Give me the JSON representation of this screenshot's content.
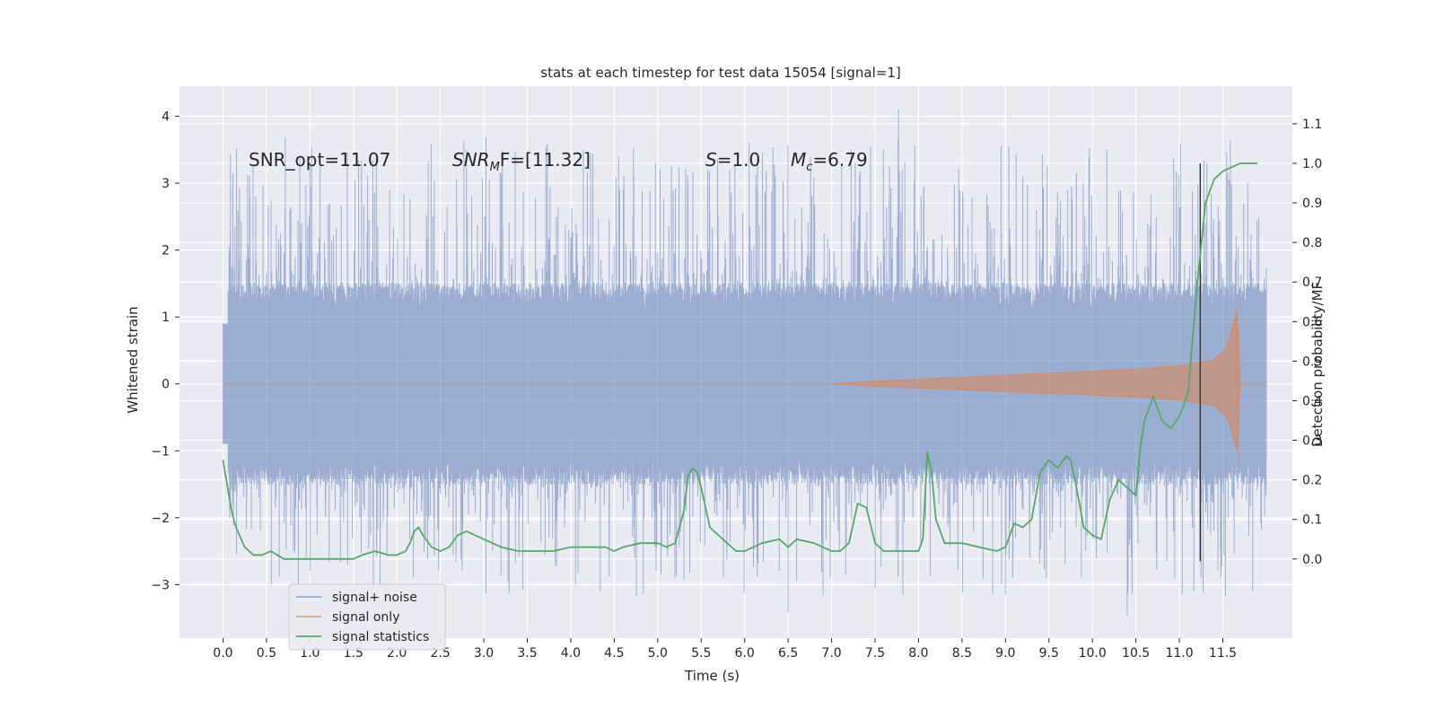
{
  "chart_data": {
    "type": "line",
    "title": "stats at each timestep for test data 15054 [signal=1]",
    "xlabel": "Time (s)",
    "ylabel_left": "Whitened strain",
    "ylabel_right": "Detection probability/MF",
    "xlim": [
      -0.5,
      12.3
    ],
    "ylim_left": [
      -3.8,
      4.45
    ],
    "ylim_right": [
      -0.2,
      1.195
    ],
    "x_ticks": [
      "0.0",
      "0.5",
      "1.0",
      "1.5",
      "2.0",
      "2.5",
      "3.0",
      "3.5",
      "4.0",
      "4.5",
      "5.0",
      "5.5",
      "6.0",
      "6.5",
      "7.0",
      "7.5",
      "8.0",
      "8.5",
      "9.0",
      "9.5",
      "10.0",
      "10.5",
      "11.0",
      "11.5"
    ],
    "y_ticks_left": [
      "4",
      "3",
      "2",
      "1",
      "0",
      "−1",
      "−2",
      "−3"
    ],
    "y_ticks_right": [
      "1.1",
      "1.0",
      "0.9",
      "0.8",
      "0.7",
      "0.6",
      "0.5",
      "0.4",
      "0.3",
      "0.2",
      "0.1",
      "0.0"
    ],
    "grid": true,
    "annotations": {
      "snr_opt": "SNR_opt=11.07",
      "snr_mf_sym": "SNR",
      "snr_mf_sub": "M",
      "snr_mf_rest": "F=[11.32]",
      "s_sym": "S",
      "s_val": "=1.0",
      "mc_sym": "M",
      "mc_sub": "c",
      "mc_val": "=6.79"
    },
    "vertical_marker_x": 11.24,
    "legend": {
      "position": "lower-left",
      "entries": [
        "signal+ noise",
        "signal only",
        "signal statistics"
      ]
    },
    "series": [
      {
        "name": "signal+ noise",
        "color": "#4c72b0",
        "x_range": [
          0.0,
          12.0
        ],
        "core_band": [
          -1.5,
          1.5
        ],
        "peak_range": [
          -3.5,
          4.1
        ],
        "description_values": {
          "max": 4.1,
          "min": -3.45
        }
      },
      {
        "name": "signal only",
        "color": "#dd8452",
        "x_range": [
          0.0,
          12.0
        ],
        "envelope": {
          "x": [
            0.0,
            7.0,
            7.5,
            8.0,
            8.5,
            9.0,
            9.5,
            10.0,
            10.5,
            11.0,
            11.4,
            11.55,
            11.62,
            11.67,
            11.7,
            12.0
          ],
          "amp": [
            0.0,
            0.0,
            0.04,
            0.07,
            0.1,
            0.13,
            0.16,
            0.19,
            0.22,
            0.27,
            0.36,
            0.55,
            0.9,
            1.15,
            0.0,
            0.0
          ]
        }
      },
      {
        "name": "signal statistics",
        "color": "#55a868",
        "x": [
          0.0,
          0.1,
          0.15,
          0.25,
          0.35,
          0.45,
          0.55,
          0.7,
          0.9,
          1.1,
          1.3,
          1.5,
          1.6,
          1.75,
          1.9,
          2.0,
          2.1,
          2.15,
          2.2,
          2.25,
          2.3,
          2.4,
          2.5,
          2.6,
          2.7,
          2.8,
          3.0,
          3.2,
          3.4,
          3.6,
          3.8,
          4.0,
          4.2,
          4.4,
          4.5,
          4.6,
          4.8,
          5.0,
          5.1,
          5.2,
          5.3,
          5.35,
          5.4,
          5.45,
          5.5,
          5.6,
          5.7,
          5.8,
          5.9,
          6.0,
          6.2,
          6.4,
          6.5,
          6.6,
          6.8,
          7.0,
          7.1,
          7.2,
          7.3,
          7.4,
          7.5,
          7.6,
          7.8,
          8.0,
          8.05,
          8.1,
          8.15,
          8.2,
          8.3,
          8.5,
          8.7,
          8.9,
          9.0,
          9.1,
          9.2,
          9.3,
          9.4,
          9.5,
          9.6,
          9.7,
          9.75,
          9.8,
          9.9,
          10.0,
          10.1,
          10.2,
          10.3,
          10.4,
          10.5,
          10.55,
          10.6,
          10.7,
          10.8,
          10.9,
          11.0,
          11.1,
          11.2,
          11.3,
          11.4,
          11.5,
          11.6,
          11.7,
          11.8,
          11.9
        ],
        "y": [
          0.25,
          0.12,
          0.08,
          0.03,
          0.01,
          0.01,
          0.02,
          0.0,
          0.0,
          0.0,
          0.0,
          0.0,
          0.01,
          0.02,
          0.01,
          0.01,
          0.02,
          0.04,
          0.07,
          0.08,
          0.06,
          0.03,
          0.02,
          0.03,
          0.06,
          0.07,
          0.05,
          0.03,
          0.02,
          0.02,
          0.02,
          0.03,
          0.03,
          0.03,
          0.02,
          0.03,
          0.04,
          0.04,
          0.03,
          0.04,
          0.12,
          0.21,
          0.23,
          0.22,
          0.18,
          0.08,
          0.06,
          0.04,
          0.02,
          0.02,
          0.04,
          0.05,
          0.03,
          0.05,
          0.04,
          0.02,
          0.02,
          0.04,
          0.14,
          0.13,
          0.04,
          0.02,
          0.02,
          0.02,
          0.05,
          0.27,
          0.22,
          0.1,
          0.04,
          0.04,
          0.03,
          0.02,
          0.03,
          0.09,
          0.08,
          0.1,
          0.22,
          0.25,
          0.23,
          0.26,
          0.25,
          0.2,
          0.08,
          0.06,
          0.05,
          0.15,
          0.2,
          0.18,
          0.16,
          0.28,
          0.35,
          0.41,
          0.35,
          0.33,
          0.36,
          0.42,
          0.68,
          0.9,
          0.96,
          0.98,
          0.99,
          1.0,
          1.0,
          1.0
        ]
      }
    ]
  }
}
